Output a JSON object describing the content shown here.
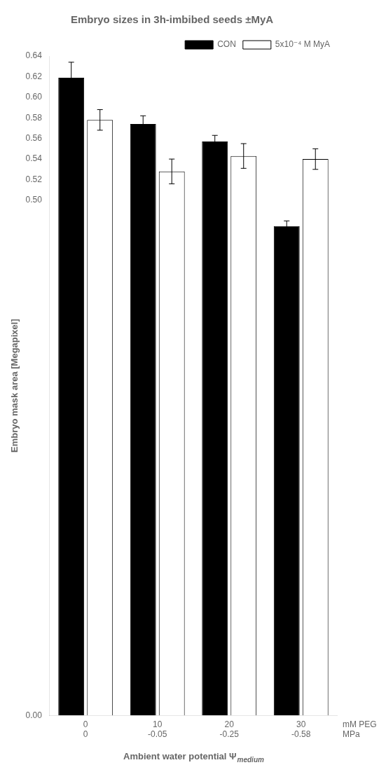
{
  "chart_data": {
    "type": "bar",
    "title": "Embryo sizes in 3h-imbibed seeds ±MyA",
    "ylabel": "Embryo mask area [Megapixel]",
    "xlabel": "Ambient water potential Ψ",
    "xlabel_subscript": "medium",
    "categories": [
      "0",
      "10",
      "20",
      "30"
    ],
    "category_labels_2": [
      "0",
      "-0.05",
      "-0.25",
      "-0.58"
    ],
    "category_row_names": [
      "mM PEG",
      "MPa"
    ],
    "series": [
      {
        "name": "CON",
        "color": "#000000",
        "values": [
          0.619,
          0.574,
          0.557,
          0.475
        ],
        "errors": [
          0.015,
          0.008,
          0.006,
          0.005
        ]
      },
      {
        "name": "5x10⁻⁴ M MyA",
        "color": "#ffffff",
        "values": [
          0.578,
          0.528,
          0.543,
          0.54
        ],
        "errors": [
          0.01,
          0.012,
          0.012,
          0.01
        ]
      }
    ],
    "ylim": [
      0,
      0.64
    ],
    "yticks": [
      {
        "value": 0,
        "label": "0.00"
      },
      {
        "value": 0.5,
        "label": "0.50"
      },
      0.52,
      0.54,
      0.56,
      0.58,
      {
        "value": 0.6,
        "label": "0.60"
      },
      0.62,
      0.64
    ],
    "grid": false,
    "legend": "upper right"
  }
}
